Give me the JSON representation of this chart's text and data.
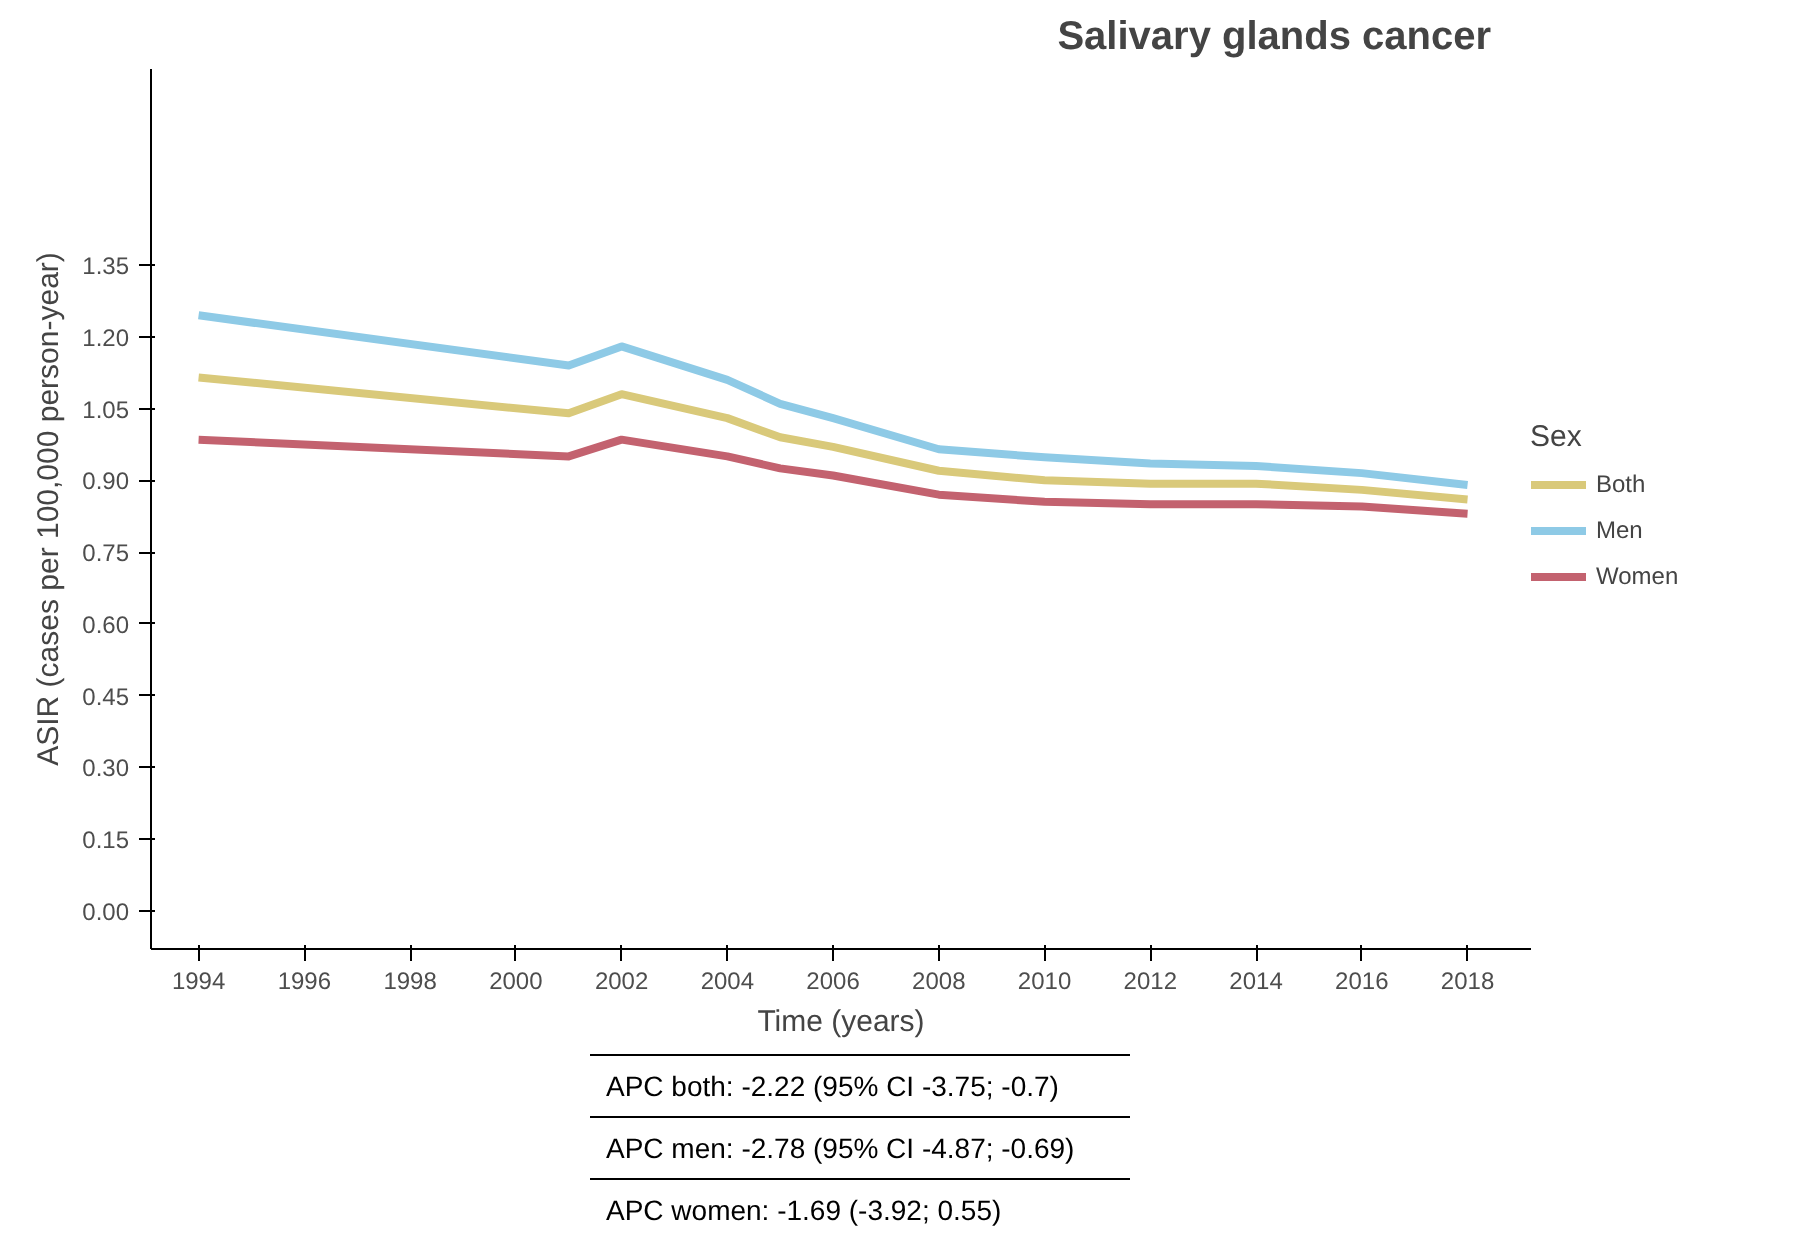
{
  "chart_data": {
    "type": "line",
    "title": "Salivary glands cancer",
    "xlabel": "Time (years)",
    "ylabel": "ASIR (cases per 100,000 person-year)",
    "legend_title": "Sex",
    "legend": "right",
    "grid": false,
    "line_style": "solid",
    "marker": "none",
    "x": [
      1994,
      2001,
      2002,
      2004,
      2005,
      2006,
      2008,
      2010,
      2012,
      2014,
      2016,
      2018
    ],
    "series": [
      {
        "name": "Both",
        "color": "#d9c97a",
        "values": [
          1.115,
          1.04,
          1.08,
          1.03,
          0.99,
          0.97,
          0.92,
          0.9,
          0.893,
          0.893,
          0.88,
          0.86
        ]
      },
      {
        "name": "Men",
        "color": "#8ecae6",
        "values": [
          1.245,
          1.14,
          1.18,
          1.11,
          1.06,
          1.03,
          0.965,
          0.948,
          0.935,
          0.93,
          0.915,
          0.89
        ]
      },
      {
        "name": "Women",
        "color": "#c3626f",
        "values": [
          0.985,
          0.95,
          0.985,
          0.95,
          0.925,
          0.91,
          0.87,
          0.855,
          0.85,
          0.85,
          0.845,
          0.83
        ]
      }
    ],
    "xlim": [
      1993.1,
      2019.2
    ],
    "xticks": [
      1994,
      1996,
      1998,
      2000,
      2002,
      2004,
      2006,
      2008,
      2010,
      2012,
      2014,
      2016,
      2018
    ],
    "ylim": [
      -0.08,
      1.76
    ],
    "yticks": [
      {
        "value": 0,
        "label": "0.00"
      },
      {
        "value": 0.15,
        "label": "0.15"
      },
      {
        "value": 0.3,
        "label": "0.30"
      },
      {
        "value": 0.45,
        "label": "0.45"
      },
      {
        "value": 0.6,
        "label": "0.60"
      },
      {
        "value": 0.75,
        "label": "0.75"
      },
      {
        "value": 0.9,
        "label": "0.90"
      },
      {
        "value": 1.05,
        "label": "1.05"
      },
      {
        "value": 1.2,
        "label": "1.20"
      },
      {
        "value": 1.35,
        "label": "1.35"
      }
    ],
    "annotations": [
      "APC both: -2.22 (95% CI -3.75; -0.7)",
      "APC men: -2.78 (95% CI -4.87; -0.69)",
      "APC women: -1.69 (-3.92; 0.55)"
    ]
  }
}
